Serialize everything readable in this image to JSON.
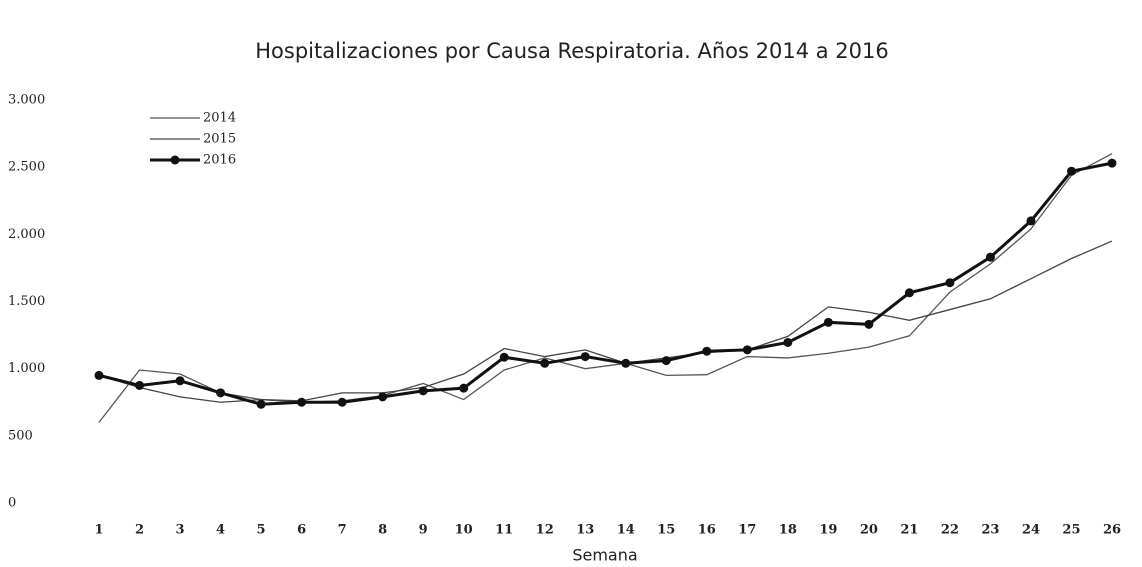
{
  "chart_data": {
    "type": "line",
    "title": "Hospitalizaciones por Causa Respiratoria. Años 2014 a 2016",
    "x_label": "Semana",
    "categories": [
      "1",
      "2",
      "3",
      "4",
      "5",
      "6",
      "7",
      "8",
      "9",
      "10",
      "11",
      "12",
      "13",
      "14",
      "15",
      "16",
      "17",
      "18",
      "19",
      "20",
      "21",
      "22",
      "23",
      "24",
      "25",
      "26"
    ],
    "series": [
      {
        "name": "2014",
        "color": "#555555",
        "values": [
          600,
          990,
          960,
          820,
          770,
          750,
          760,
          800,
          890,
          770,
          990,
          1080,
          1000,
          1040,
          950,
          955,
          1090,
          1080,
          1115,
          1160,
          1245,
          1570,
          1780,
          2040,
          2440,
          2600
        ]
      },
      {
        "name": "2015",
        "color": "#444444",
        "values": [
          950,
          860,
          790,
          750,
          770,
          760,
          820,
          820,
          860,
          960,
          1150,
          1090,
          1140,
          1040,
          1080,
          1120,
          1140,
          1240,
          1460,
          1420,
          1360,
          1440,
          1520,
          1670,
          1820,
          1950
        ]
      },
      {
        "name": "2016",
        "color": "#111111",
        "values": [
          950,
          875,
          910,
          820,
          735,
          750,
          750,
          790,
          835,
          855,
          1085,
          1040,
          1090,
          1040,
          1060,
          1130,
          1140,
          1195,
          1345,
          1330,
          1565,
          1640,
          1830,
          2100,
          2470,
          2530
        ]
      }
    ],
    "ylim": [
      0,
      3000
    ],
    "yticks": [
      0,
      500,
      {
        "value": 1000,
        "label": "1.000"
      },
      {
        "value": 1500,
        "label": "1.500"
      },
      {
        "value": 2000,
        "label": "2.000"
      },
      {
        "value": 2500,
        "label": "2.500"
      },
      {
        "value": 3000,
        "label": "3.000"
      }
    ],
    "grid": false,
    "legend": "top-left"
  }
}
